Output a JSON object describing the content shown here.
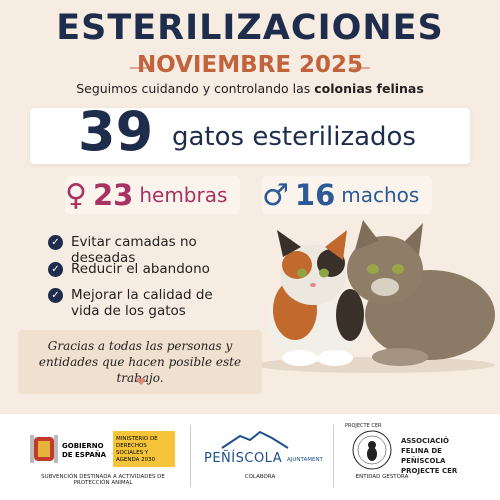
{
  "header": {
    "title": "ESTERILIZACIONES",
    "subtitle": "NOVIEMBRE 2025",
    "tagline": "Seguimos cuidando y controlando las",
    "tagline_bold": "colonias felinas"
  },
  "total": {
    "number": 39,
    "label": "gatos esterilizados"
  },
  "split": {
    "female": {
      "symbol": "♀",
      "number": 23,
      "label": "hembras"
    },
    "male": {
      "symbol": "♂",
      "number": 16,
      "label": "machos"
    }
  },
  "benefits": [
    "Evitar camadas no deseadas",
    "Reducir el abandono",
    "Mejorar la calidad de vida de los gatos"
  ],
  "thanks": "Gracias a todas las personas y entidades que hacen posible este trabajo.",
  "footer": {
    "gov": {
      "name": "GOBIERNO DE ESPAÑA",
      "ministry": "MINISTERIO DE DERECHOS SOCIALES Y AGENDA 2030",
      "note": "SUBVENCIÓN DESTINADA A ACTIVIDADES DE PROTECCIÓN ANIMAL"
    },
    "town": {
      "name": "PEÑÍSCOLA",
      "sub": "AJUNTAMENT",
      "role": "COLABORA"
    },
    "assoc": {
      "ring": "PROJECTE CER",
      "name": "ASSOCIACIÓ FELINA DE PEÑÍSCOLA PROJECTE CER",
      "role": "ENTIDAD GESTORA"
    }
  }
}
